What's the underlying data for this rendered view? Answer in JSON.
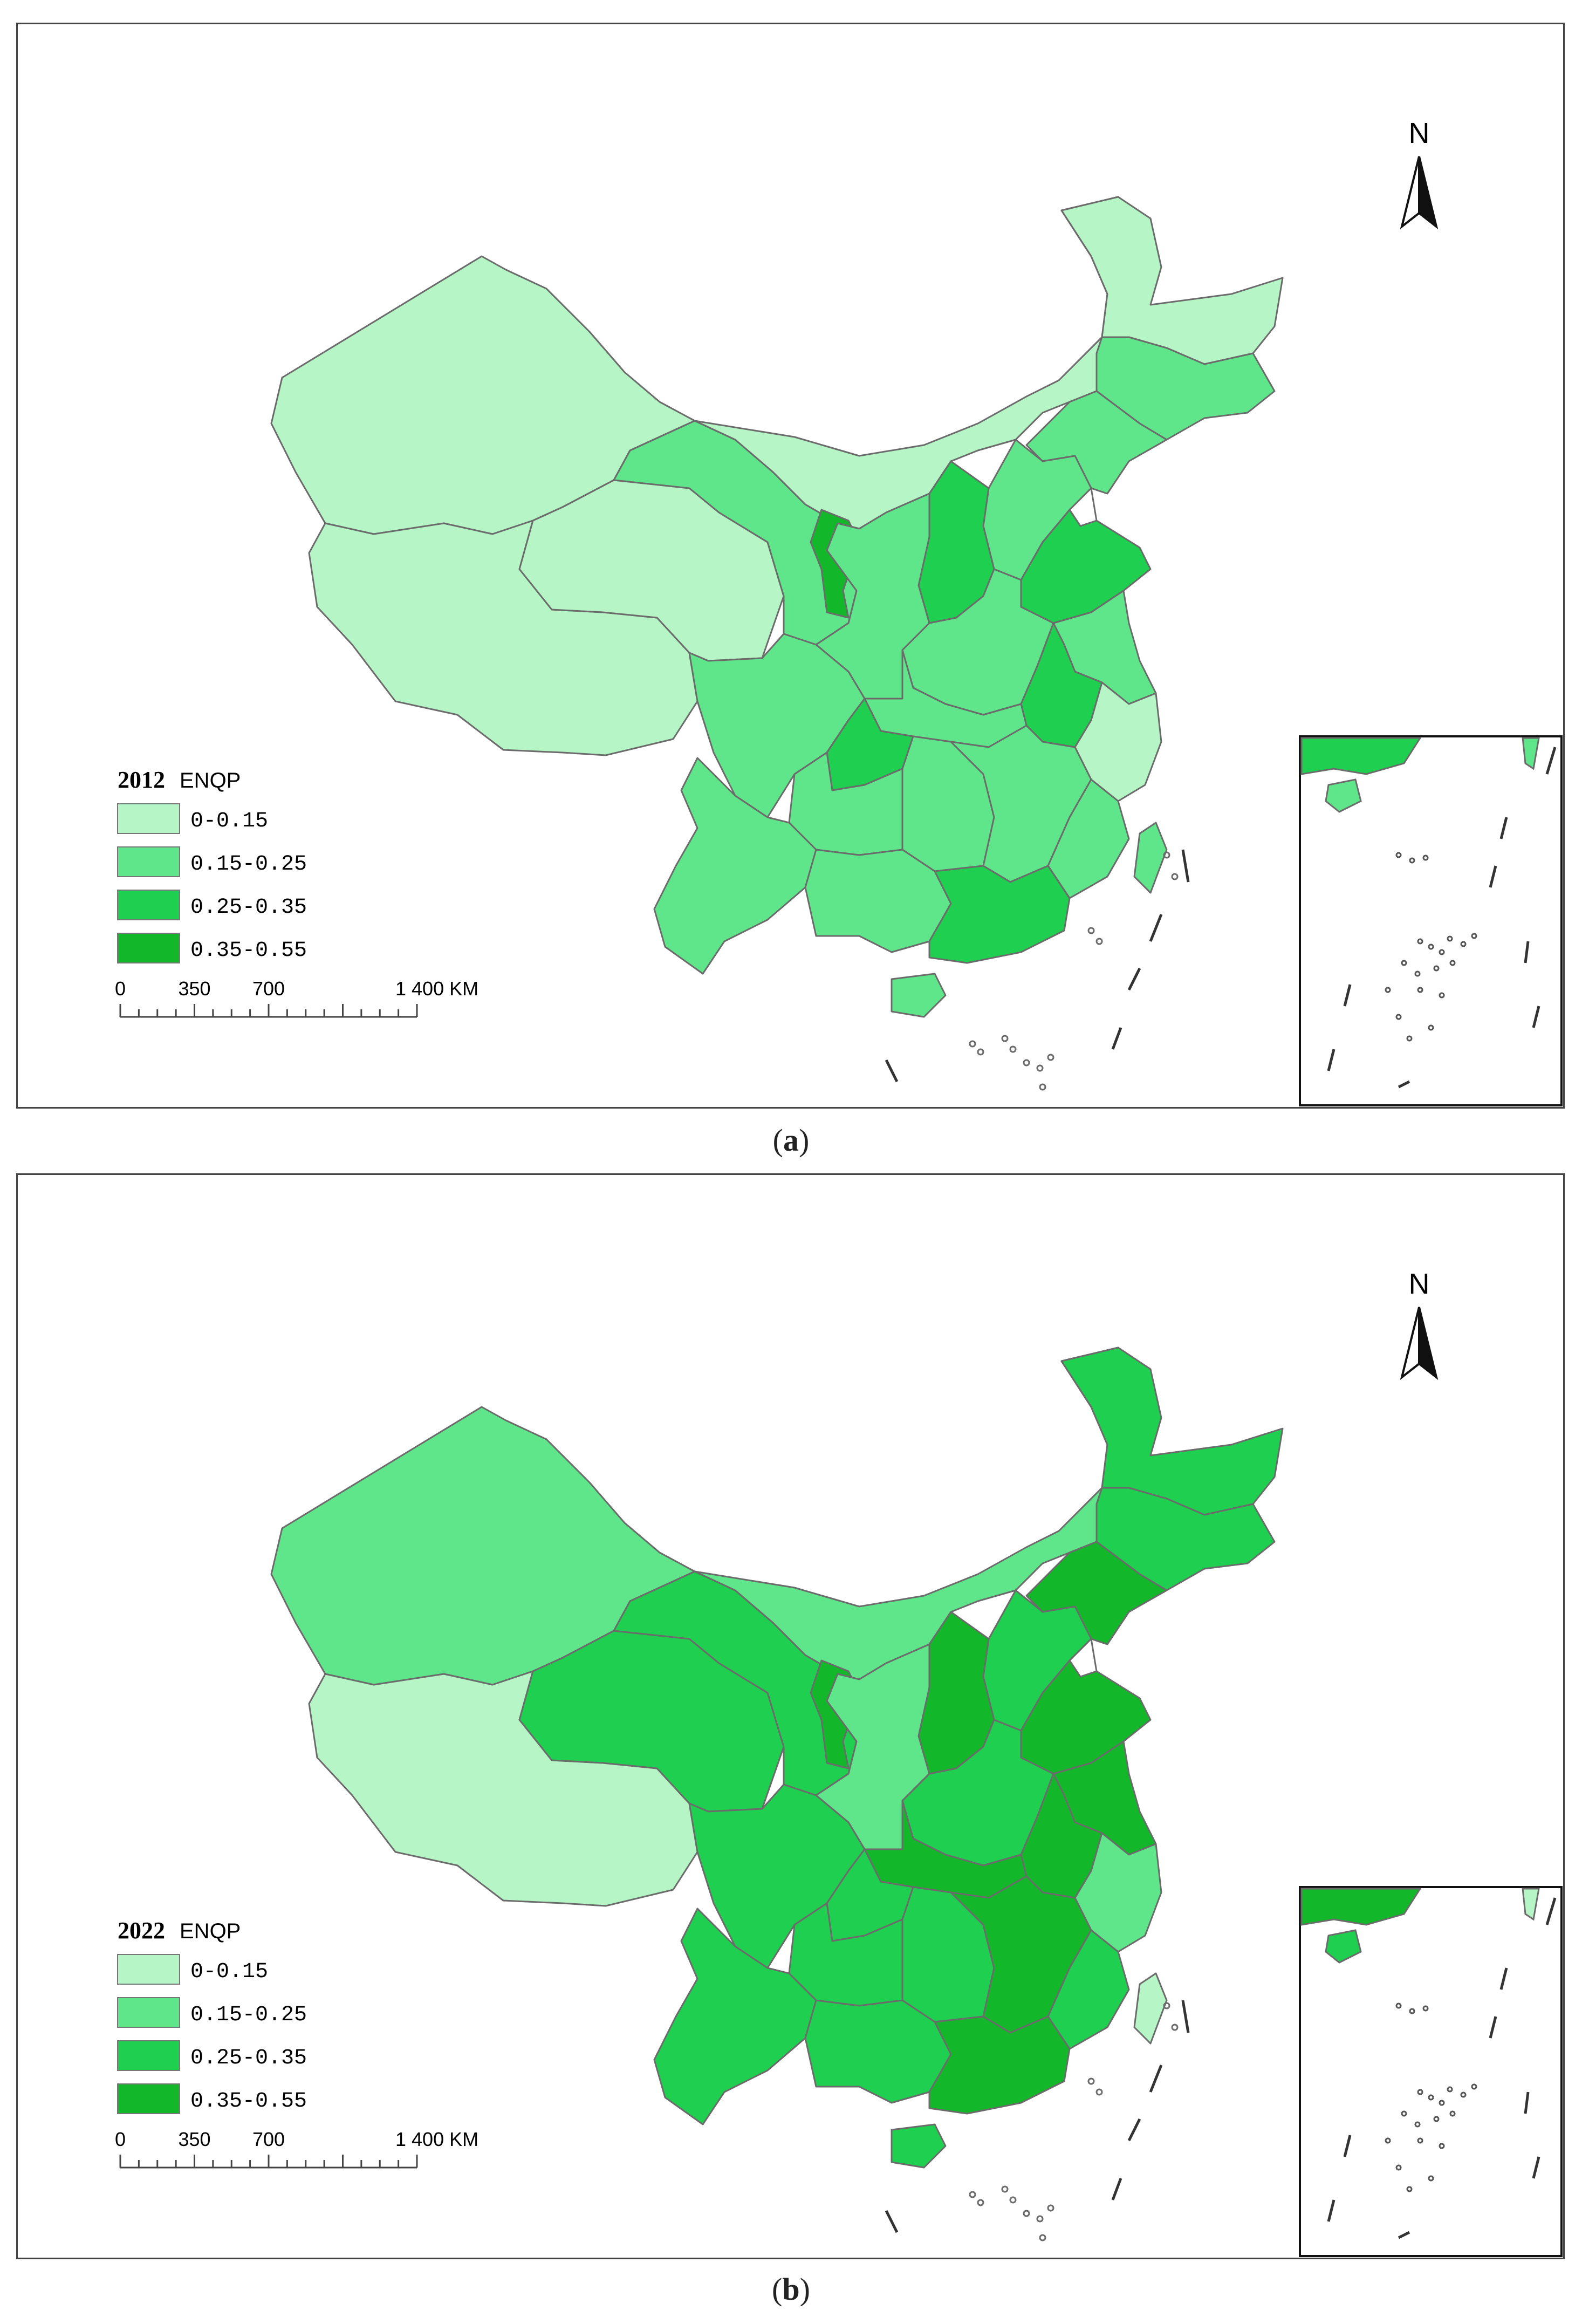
{
  "north_label": "N",
  "panels": [
    {
      "caption_open": "(",
      "caption_letter": "a",
      "caption_close": ")",
      "year": "2012",
      "indicator": "ENQP",
      "region_classes": {
        "xinjiang": 0,
        "tibet": 0,
        "qinghai": 0,
        "inner_mongolia": 0,
        "heilongjiang": 0,
        "gansu": 1,
        "jilin": 1,
        "liaoning": 1,
        "hebei": 1,
        "shaanxi": 1,
        "henan": 1,
        "sichuan": 1,
        "yunnan": 1,
        "guizhou": 1,
        "hunan": 1,
        "hubei": 1,
        "jiangxi": 1,
        "fujian": 1,
        "guangxi": 1,
        "jiangsu": 1,
        "zhejiang": 0,
        "hainan": 1,
        "taiwan": 1,
        "shanxi": 2,
        "shandong": 2,
        "anhui": 2,
        "chongqing": 2,
        "guangdong": 2,
        "ningxia": 3
      }
    },
    {
      "caption_open": "(",
      "caption_letter": "b",
      "caption_close": ")",
      "year": "2022",
      "indicator": "ENQP",
      "region_classes": {
        "xinjiang": 1,
        "tibet": 0,
        "qinghai": 2,
        "inner_mongolia": 1,
        "heilongjiang": 2,
        "gansu": 2,
        "jilin": 2,
        "liaoning": 3,
        "hebei": 2,
        "shaanxi": 1,
        "henan": 2,
        "sichuan": 2,
        "yunnan": 2,
        "guizhou": 2,
        "hunan": 2,
        "hubei": 3,
        "jiangxi": 3,
        "fujian": 2,
        "guangxi": 2,
        "jiangsu": 3,
        "zhejiang": 1,
        "hainan": 2,
        "taiwan": 0,
        "shanxi": 3,
        "shandong": 3,
        "anhui": 3,
        "chongqing": 2,
        "guangdong": 3,
        "ningxia": 3
      }
    }
  ],
  "legend": [
    {
      "label": "0-0.15",
      "color": "#b5f5c6"
    },
    {
      "label": "0.15-0.25",
      "color": "#5fe68a"
    },
    {
      "label": "0.25-0.35",
      "color": "#1fcf4f"
    },
    {
      "label": "0.35-0.55",
      "color": "#13b72a"
    }
  ],
  "scale_bar": {
    "ticks": [
      "0",
      "350",
      "700",
      "1 400 KM"
    ]
  },
  "colors": {
    "outline": "#6b6b6b",
    "frame": "#444444"
  }
}
